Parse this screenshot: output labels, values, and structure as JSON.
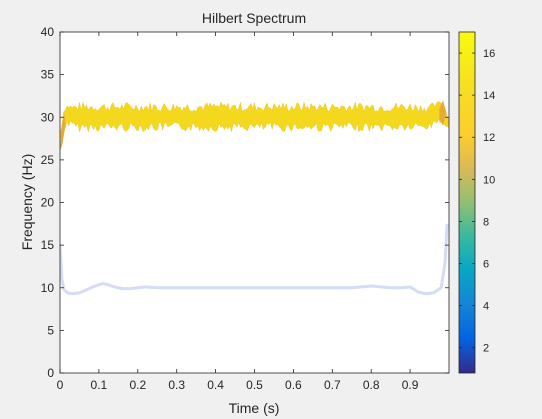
{
  "chart_data": {
    "type": "line",
    "title": "Hilbert Spectrum",
    "xlabel": "Time (s)",
    "ylabel": "Frequency (Hz)",
    "xlim": [
      0,
      1
    ],
    "ylim": [
      0,
      40
    ],
    "xticks": [
      "0",
      "0.1",
      "0.2",
      "0.3",
      "0.4",
      "0.5",
      "0.6",
      "0.7",
      "0.8",
      "0.9"
    ],
    "yticks": [
      "0",
      "5",
      "10",
      "15",
      "20",
      "25",
      "30",
      "35",
      "40"
    ],
    "grid": false,
    "colorbar": {
      "range": [
        0.8,
        17
      ],
      "ticks": [
        "2",
        "4",
        "6",
        "8",
        "10",
        "12",
        "14",
        "16"
      ],
      "colormap": "parula"
    },
    "series": [
      {
        "amplitude": 16,
        "color": "#f4d81e",
        "x": [
          0.0,
          0.01,
          0.02,
          0.03,
          0.05,
          0.1,
          0.2,
          0.3,
          0.4,
          0.5,
          0.6,
          0.7,
          0.8,
          0.9,
          0.95,
          0.97,
          0.98,
          0.99,
          1.0
        ],
        "y": [
          26,
          30.2,
          30.8,
          30.1,
          30,
          30,
          30,
          30,
          30,
          30,
          30,
          30,
          30,
          30,
          30,
          30.8,
          31.2,
          30.5,
          29
        ],
        "y_range_min": [
          28,
          28.5,
          28.8,
          28.5,
          28.3,
          28.3,
          28.3,
          28.3,
          28.3,
          28.3,
          28.3,
          28.3,
          28.3,
          28.3,
          28.4,
          29,
          29.2,
          28.5,
          28.5
        ],
        "y_range_max": [
          29,
          31.3,
          31.6,
          31.6,
          31.8,
          31.8,
          31.8,
          31.8,
          31.8,
          31.8,
          31.8,
          31.8,
          31.8,
          31.8,
          31.6,
          31.8,
          32.3,
          31.5,
          30
        ]
      },
      {
        "amplitude": 1,
        "color": "#d4dcf6",
        "x": [
          0.0,
          0.005,
          0.01,
          0.02,
          0.03,
          0.05,
          0.07,
          0.09,
          0.11,
          0.12,
          0.14,
          0.16,
          0.18,
          0.2,
          0.22,
          0.25,
          0.3,
          0.35,
          0.4,
          0.45,
          0.5,
          0.55,
          0.6,
          0.65,
          0.7,
          0.75,
          0.8,
          0.85,
          0.88,
          0.9,
          0.92,
          0.94,
          0.96,
          0.98,
          0.99,
          0.995
        ],
        "y": [
          15,
          11,
          9.8,
          9.4,
          9.3,
          9.4,
          9.8,
          10.2,
          10.5,
          10.4,
          10.1,
          9.9,
          9.9,
          10.0,
          10.1,
          10.0,
          10.0,
          10.0,
          10.0,
          10.0,
          10.0,
          10.0,
          10.0,
          10.0,
          10.0,
          10.0,
          10.2,
          10.0,
          10.0,
          10.1,
          9.5,
          9.3,
          9.4,
          10.0,
          13,
          17.5
        ]
      }
    ]
  }
}
